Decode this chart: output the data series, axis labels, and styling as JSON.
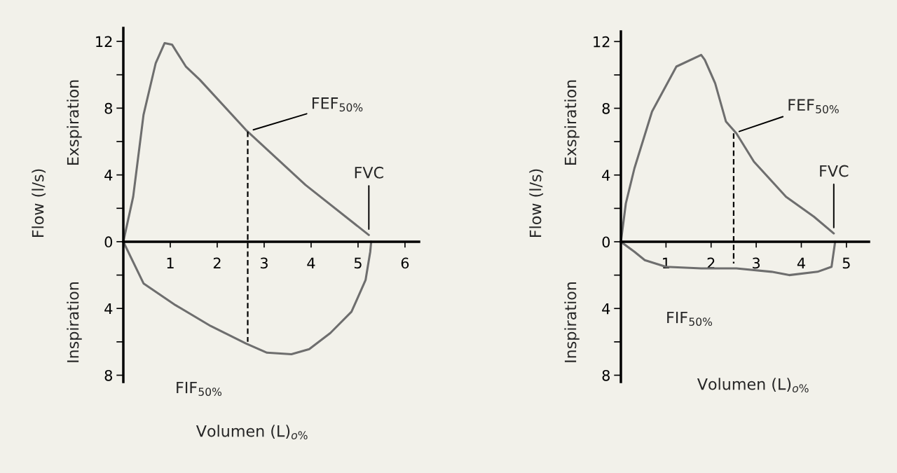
{
  "chart_data": [
    {
      "type": "line",
      "xlabel": "Volumen (L)$_{o%}$",
      "ylabel": "Flow (l/s)",
      "series": [
        {
          "color": "#6e6e6e",
          "x": [
            0,
            0.21,
            0.43,
            0.69,
            0.88,
            1.04,
            1.33,
            1.63,
            2.61,
            3.88,
            5.23
          ],
          "values": [
            0,
            2.7,
            7.6,
            10.7,
            11.9,
            11.8,
            10.5,
            9.7,
            6.7,
            3.4,
            0.4
          ]
        },
        {
          "color": "#6e6e6e",
          "x": [
            0,
            0.43,
            1.11,
            1.86,
            2.61,
            3.06,
            3.58,
            3.96,
            4.41,
            4.86,
            5.16,
            5.26,
            5.28
          ],
          "values": [
            0,
            -2.5,
            -3.8,
            -5.05,
            -6.1,
            -6.65,
            -6.74,
            -6.44,
            -5.47,
            -4.2,
            -2.3,
            -0.6,
            0
          ]
        },
        {
          "color": "#000000",
          "line_style": "dashed",
          "x": [
            2.65,
            2.65
          ],
          "values": [
            6.6,
            -6.0
          ]
        }
      ],
      "annotations": [
        {
          "text": "FEF$_{50%}$",
          "x": 2.65,
          "y": 6.6
        },
        {
          "text": "FVC",
          "x": 5.23,
          "y": 0.4
        },
        "FIF$_{50%}$",
        "Exspiration",
        "Inspiration"
      ],
      "xlim": [
        0,
        6.3
      ],
      "ylim": [
        -8.4,
        12.8
      ],
      "xticks": [
        1,
        2,
        3,
        4,
        5,
        6
      ],
      "yticks": [
        {
          "value": -8,
          "label": "8"
        },
        {
          "value": -6,
          "label": null
        },
        {
          "value": -4,
          "label": "4"
        },
        {
          "value": -2,
          "label": null
        },
        0,
        {
          "value": 2,
          "label": null
        },
        4,
        {
          "value": 6,
          "label": null
        },
        8,
        {
          "value": 10,
          "label": null
        },
        12
      ],
      "grid": false,
      "legend": false
    },
    {
      "type": "line",
      "xlabel": "Volumen (L)$_{o%}$",
      "ylabel": "Flow (l/s)",
      "series": [
        {
          "color": "#6e6e6e",
          "x": [
            0,
            0.11,
            0.3,
            0.69,
            1.23,
            1.78,
            1.86,
            2.09,
            2.33,
            2.56,
            2.95,
            3.66,
            4.28,
            4.72
          ],
          "values": [
            0,
            2.3,
            4.4,
            7.8,
            10.5,
            11.2,
            10.9,
            9.5,
            7.2,
            6.5,
            4.8,
            2.7,
            1.5,
            0.5
          ]
        },
        {
          "color": "#6e6e6e",
          "x": [
            4.75,
            4.67,
            4.36,
            3.73,
            3.34,
            2.56,
            1.78,
            1.0,
            0.53,
            0.3,
            0
          ],
          "values": [
            0,
            -1.5,
            -1.8,
            -2.0,
            -1.8,
            -1.6,
            -1.6,
            -1.5,
            -1.1,
            -0.6,
            0
          ]
        },
        {
          "color": "#000000",
          "line_style": "dashed",
          "x": [
            2.5,
            2.5
          ],
          "values": [
            6.5,
            -1.3
          ]
        }
      ],
      "annotations": [
        {
          "text": "FEF$_{50%}$",
          "x": 2.5,
          "y": 6.5
        },
        {
          "text": "FVC",
          "x": 4.72,
          "y": 0.5
        },
        "FIF$_{50%}$",
        "Exspiration",
        "Inspiration"
      ],
      "xlim": [
        0,
        5.5
      ],
      "ylim": [
        -8.4,
        12.6
      ],
      "xticks": [
        1,
        2,
        3,
        4,
        5
      ],
      "yticks": [
        {
          "value": -8,
          "label": "8"
        },
        {
          "value": -6,
          "label": null
        },
        {
          "value": -4,
          "label": "4"
        },
        {
          "value": -2,
          "label": null
        },
        0,
        {
          "value": 2,
          "label": null
        },
        4,
        {
          "value": 6,
          "label": null
        },
        8,
        {
          "value": 10,
          "label": null
        },
        12
      ],
      "grid": false,
      "legend": false
    }
  ]
}
